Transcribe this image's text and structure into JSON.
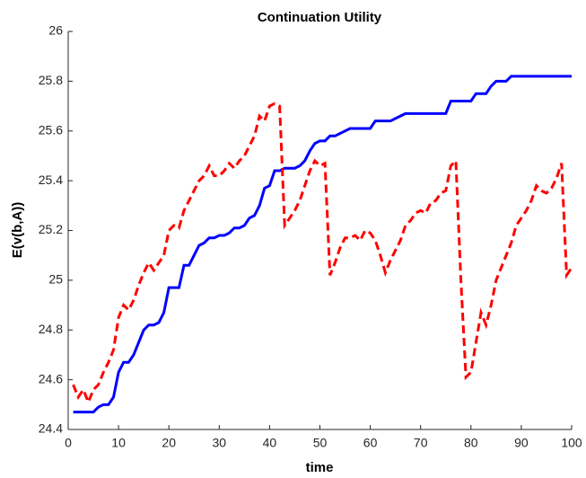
{
  "chart_data": {
    "type": "line",
    "title": "Continuation Utility",
    "x_label": "time",
    "y_label": "E(v(b,A))",
    "x": [
      1,
      2,
      3,
      4,
      5,
      6,
      7,
      8,
      9,
      10,
      11,
      12,
      13,
      14,
      15,
      16,
      17,
      18,
      19,
      20,
      21,
      22,
      23,
      24,
      25,
      26,
      27,
      28,
      29,
      30,
      31,
      32,
      33,
      34,
      35,
      36,
      37,
      38,
      39,
      40,
      41,
      42,
      43,
      44,
      45,
      46,
      47,
      48,
      49,
      50,
      51,
      52,
      53,
      54,
      55,
      56,
      57,
      58,
      59,
      60,
      61,
      62,
      63,
      64,
      65,
      66,
      67,
      68,
      69,
      70,
      71,
      72,
      73,
      74,
      75,
      76,
      77,
      78,
      79,
      80,
      81,
      82,
      83,
      84,
      85,
      86,
      87,
      88,
      89,
      90,
      91,
      92,
      93,
      94,
      95,
      96,
      97,
      98,
      99,
      100
    ],
    "series": [
      {
        "color": "#0000ff",
        "dash": false,
        "values": [
          24.47,
          24.47,
          24.47,
          24.47,
          24.47,
          24.49,
          24.5,
          24.5,
          24.53,
          24.63,
          24.67,
          24.67,
          24.7,
          24.75,
          24.8,
          24.82,
          24.82,
          24.83,
          24.87,
          24.97,
          24.97,
          24.97,
          25.06,
          25.06,
          25.1,
          25.14,
          25.15,
          25.17,
          25.17,
          25.18,
          25.18,
          25.19,
          25.21,
          25.21,
          25.22,
          25.25,
          25.26,
          25.3,
          25.37,
          25.38,
          25.44,
          25.44,
          25.45,
          25.45,
          25.45,
          25.46,
          25.48,
          25.52,
          25.55,
          25.56,
          25.56,
          25.58,
          25.58,
          25.59,
          25.6,
          25.61,
          25.61,
          25.61,
          25.61,
          25.61,
          25.64,
          25.64,
          25.64,
          25.64,
          25.65,
          25.66,
          25.67,
          25.67,
          25.67,
          25.67,
          25.67,
          25.67,
          25.67,
          25.67,
          25.67,
          25.72,
          25.72,
          25.72,
          25.72,
          25.72,
          25.75,
          25.75,
          25.75,
          25.78,
          25.8,
          25.8,
          25.8,
          25.82,
          25.82,
          25.82,
          25.82,
          25.82,
          25.82,
          25.82,
          25.82,
          25.82,
          25.82,
          25.82,
          25.82,
          25.82
        ]
      },
      {
        "color": "#ff0000",
        "dash": true,
        "values": [
          24.58,
          24.53,
          24.56,
          24.51,
          24.56,
          24.58,
          24.63,
          24.67,
          24.72,
          24.85,
          24.9,
          24.88,
          24.92,
          24.98,
          25.03,
          25.07,
          25.04,
          25.07,
          25.1,
          25.2,
          25.22,
          25.21,
          25.28,
          25.32,
          25.36,
          25.4,
          25.42,
          25.46,
          25.42,
          25.42,
          25.44,
          25.47,
          25.45,
          25.48,
          25.5,
          25.54,
          25.58,
          25.66,
          25.64,
          25.7,
          25.71,
          25.7,
          25.22,
          25.25,
          25.28,
          25.32,
          25.38,
          25.44,
          25.48,
          25.46,
          25.47,
          25.02,
          25.07,
          25.13,
          25.17,
          25.17,
          25.18,
          25.16,
          25.2,
          25.19,
          25.16,
          25.1,
          25.03,
          25.08,
          25.12,
          25.16,
          25.22,
          25.24,
          25.27,
          25.28,
          25.27,
          25.31,
          25.32,
          25.35,
          25.36,
          25.46,
          25.48,
          25.0,
          24.61,
          24.63,
          24.75,
          24.87,
          24.82,
          24.9,
          25.0,
          25.05,
          25.1,
          25.15,
          25.22,
          25.25,
          25.28,
          25.32,
          25.38,
          25.36,
          25.35,
          25.37,
          25.41,
          25.47,
          25.02,
          25.05
        ]
      }
    ],
    "xlim": [
      0,
      100
    ],
    "xticks": [
      0,
      10,
      20,
      30,
      40,
      50,
      60,
      70,
      80,
      90,
      100
    ],
    "ylim": [
      24.4,
      26
    ],
    "yticks": [
      24.4,
      24.6,
      24.8,
      25,
      25.2,
      25.4,
      25.6,
      25.8,
      26
    ]
  }
}
